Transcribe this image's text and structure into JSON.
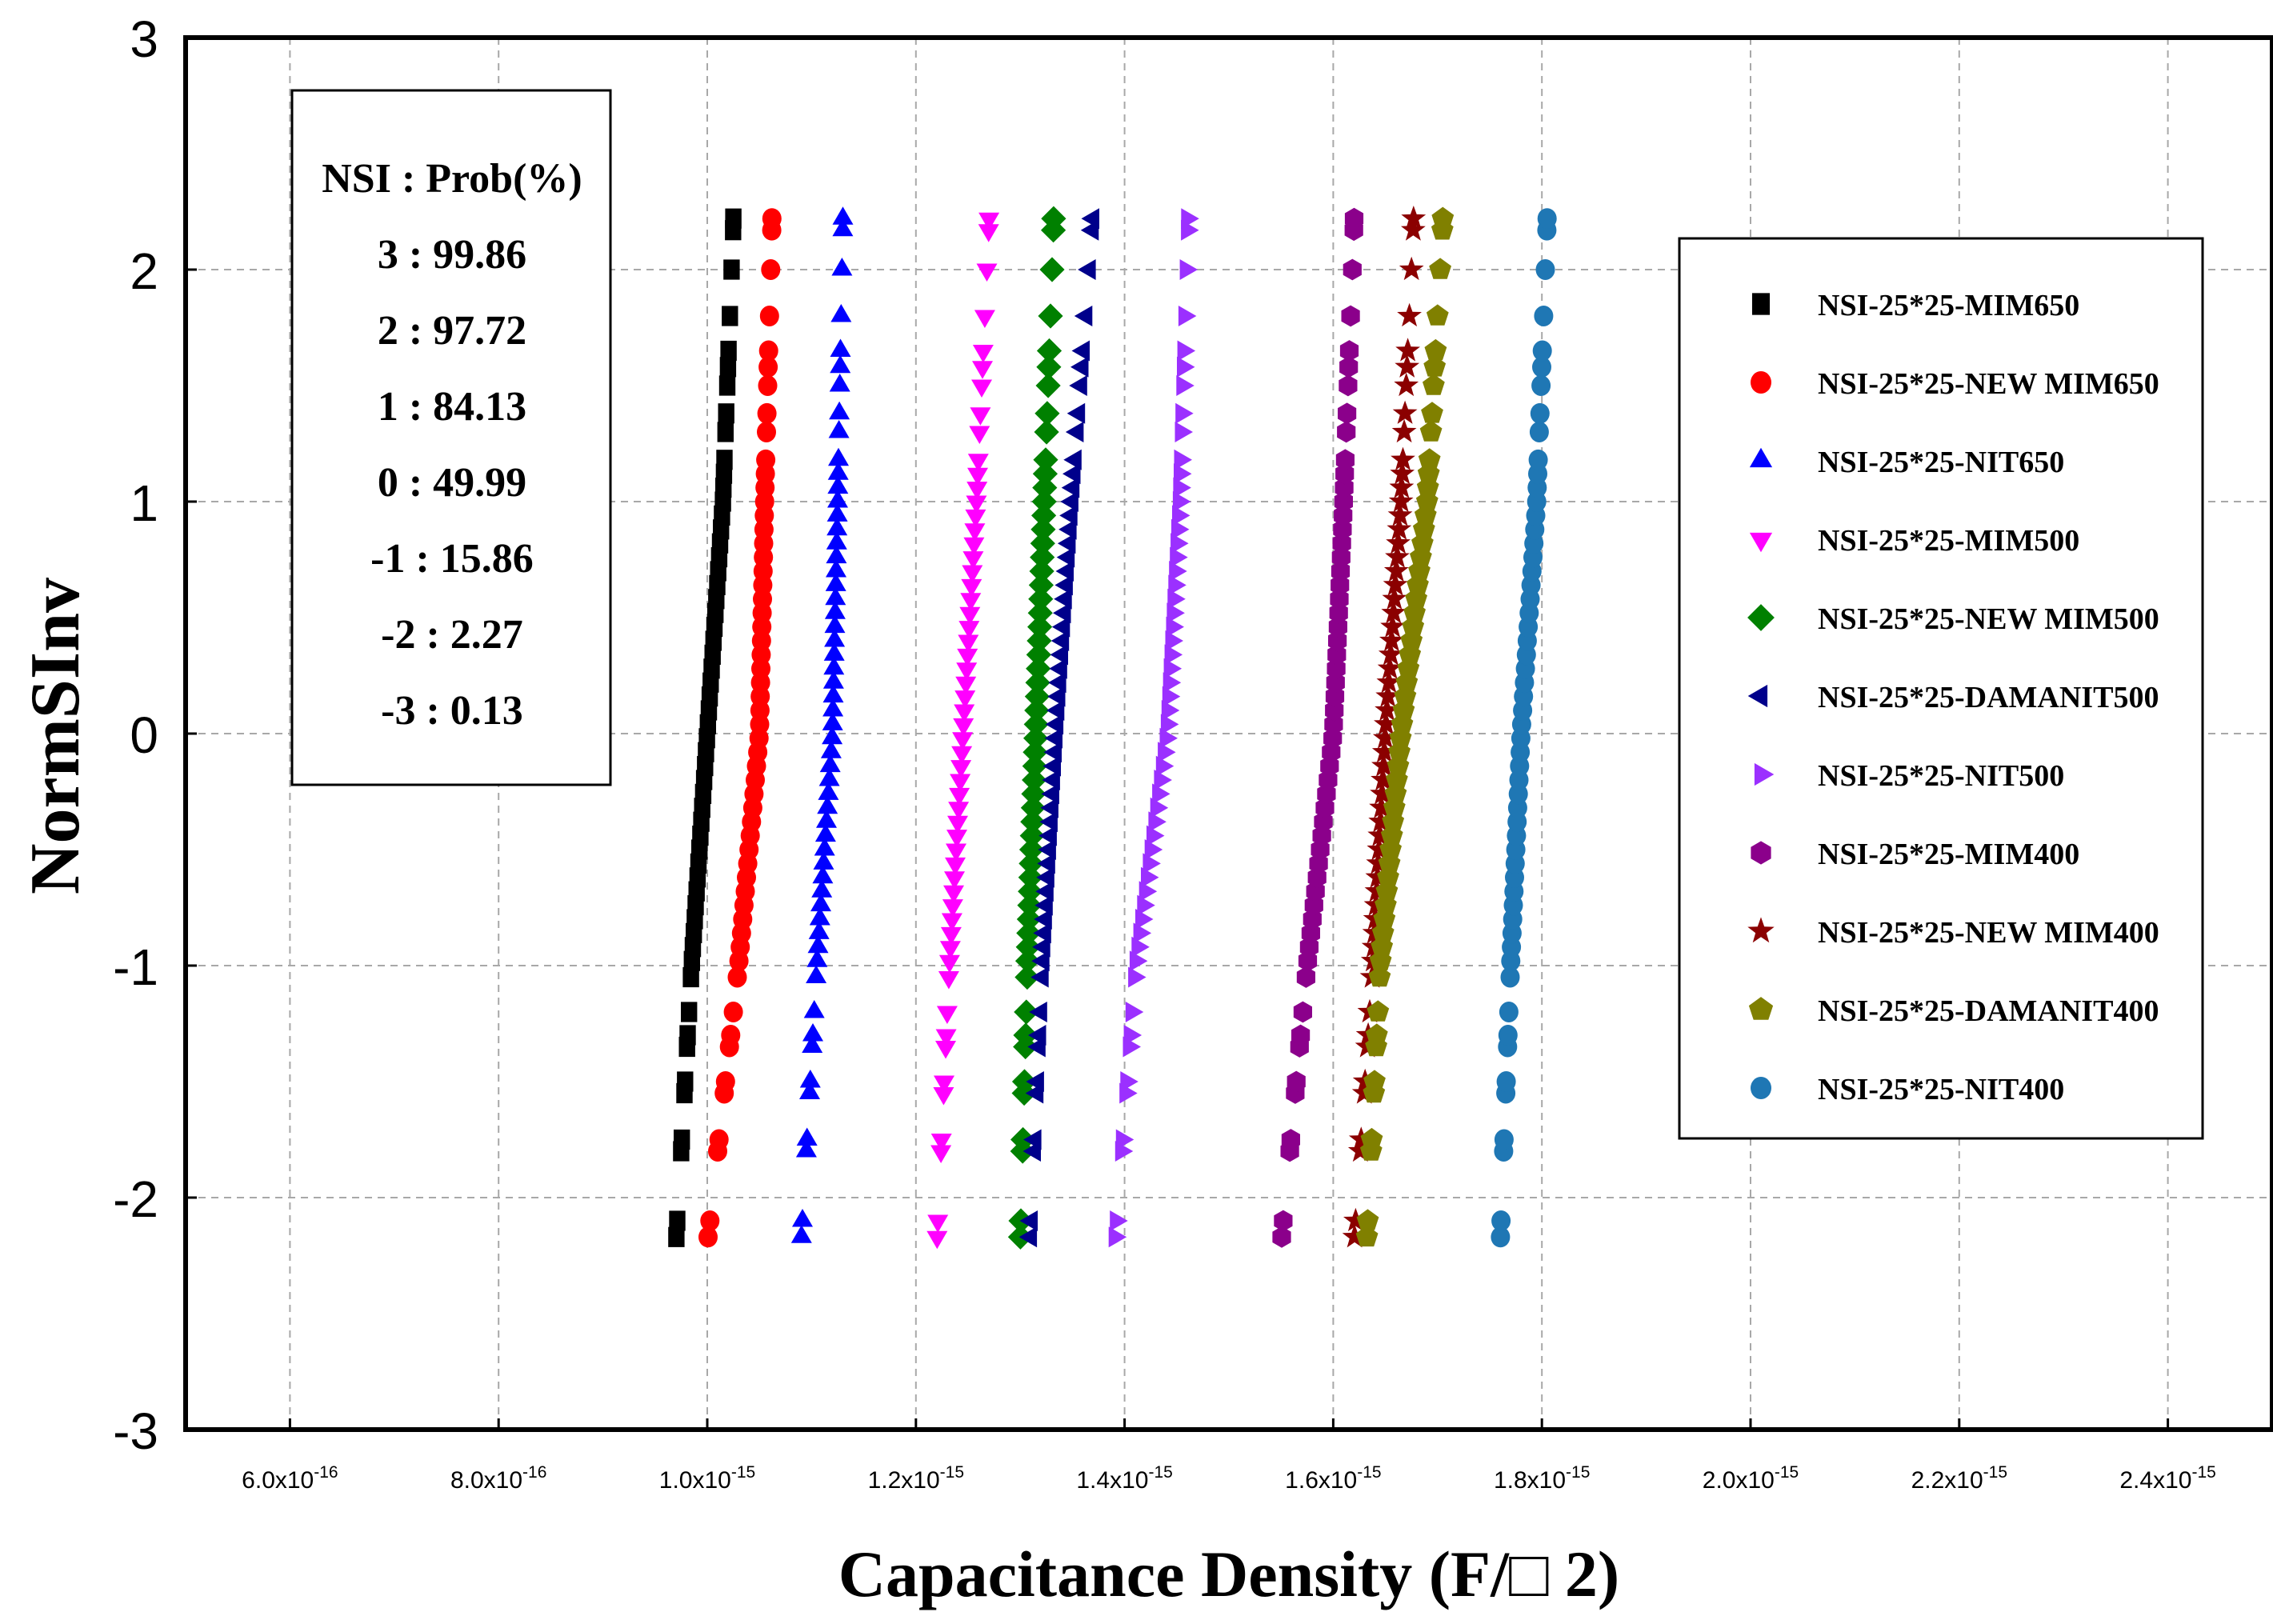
{
  "chart_data": {
    "type": "scatter",
    "title": "",
    "xlabel": "Capacitance Density (F/□ 2)",
    "ylabel": "NormSInv",
    "xlim": [
      5e-16,
      2.5e-15
    ],
    "ylim": [
      -3,
      3
    ],
    "grid": true,
    "legend_position": "right",
    "x_ticks": [
      {
        "value": 6e-16,
        "mant": "6.0x10",
        "exp": "-16"
      },
      {
        "value": 8e-16,
        "mant": "8.0x10",
        "exp": "-16"
      },
      {
        "value": 1e-15,
        "mant": "1.0x10",
        "exp": "-15"
      },
      {
        "value": 1.2e-15,
        "mant": "1.2x10",
        "exp": "-15"
      },
      {
        "value": 1.4e-15,
        "mant": "1.4x10",
        "exp": "-15"
      },
      {
        "value": 1.6e-15,
        "mant": "1.6x10",
        "exp": "-15"
      },
      {
        "value": 1.8e-15,
        "mant": "1.8x10",
        "exp": "-15"
      },
      {
        "value": 2e-15,
        "mant": "2.0x10",
        "exp": "-15"
      },
      {
        "value": 2.2e-15,
        "mant": "2.2x10",
        "exp": "-15"
      },
      {
        "value": 2.4e-15,
        "mant": "2.4x10",
        "exp": "-15"
      }
    ],
    "y_ticks": [
      {
        "value": 3,
        "label": "3"
      },
      {
        "value": 2,
        "label": "2"
      },
      {
        "value": 1,
        "label": "1"
      },
      {
        "value": 0,
        "label": "0"
      },
      {
        "value": -1,
        "label": "-1"
      },
      {
        "value": -2,
        "label": "-2"
      },
      {
        "value": -3,
        "label": "-3"
      }
    ],
    "annotation": {
      "title": "NSI : Prob(%)",
      "lines": [
        "3 : 99.86",
        "2 : 97.72",
        "1 : 84.13",
        "0 : 49.99",
        "-1 : 15.86",
        "-2 : 2.27",
        "-3 : 0.13"
      ]
    },
    "y_points": [
      -2.17,
      -2.1,
      -1.8,
      -1.75,
      -1.55,
      -1.5,
      -1.35,
      -1.3,
      -1.2,
      -1.05,
      -0.98,
      -0.92,
      -0.86,
      -0.8,
      -0.74,
      -0.68,
      -0.62,
      -0.56,
      -0.5,
      -0.44,
      -0.38,
      -0.32,
      -0.26,
      -0.2,
      -0.14,
      -0.08,
      -0.02,
      0.04,
      0.1,
      0.16,
      0.22,
      0.28,
      0.34,
      0.4,
      0.46,
      0.52,
      0.58,
      0.64,
      0.7,
      0.76,
      0.82,
      0.88,
      0.94,
      1.0,
      1.06,
      1.12,
      1.18,
      1.3,
      1.38,
      1.5,
      1.58,
      1.65,
      1.8,
      2.0,
      2.17,
      2.22
    ],
    "series": [
      {
        "name": "NSI-25*25-MIM650",
        "marker": "square",
        "color": "#000000",
        "min": 9.7e-16,
        "q1": 9.85e-16,
        "mid": 1e-15,
        "q3": 1.015e-15,
        "max": 1.025e-15
      },
      {
        "name": "NSI-25*25-NEW MIM650",
        "marker": "circle",
        "color": "#ff0000",
        "min": 1e-15,
        "q1": 1.03e-15,
        "mid": 1.05e-15,
        "q3": 1.055e-15,
        "max": 1.062e-15
      },
      {
        "name": "NSI-25*25-NIT650",
        "marker": "triangle-up",
        "color": "#0000ff",
        "min": 1.09e-15,
        "q1": 1.105e-15,
        "mid": 1.12e-15,
        "q3": 1.125e-15,
        "max": 1.13e-15
      },
      {
        "name": "NSI-25*25-MIM500",
        "marker": "triangle-down",
        "color": "#ff00ff",
        "min": 1.22e-15,
        "q1": 1.232e-15,
        "mid": 1.245e-15,
        "q3": 1.258e-15,
        "max": 1.27e-15
      },
      {
        "name": "NSI-25*25-NEW MIM500",
        "marker": "diamond",
        "color": "#008000",
        "min": 1.3e-15,
        "q1": 1.307e-15,
        "mid": 1.315e-15,
        "q3": 1.323e-15,
        "max": 1.332e-15
      },
      {
        "name": "NSI-25*25-DAMANIT500",
        "marker": "triangle-left",
        "color": "#00008b",
        "min": 1.31e-15,
        "q1": 1.322e-15,
        "mid": 1.335e-15,
        "q3": 1.35e-15,
        "max": 1.37e-15
      },
      {
        "name": "NSI-25*25-NIT500",
        "marker": "triangle-right",
        "color": "#9b30ff",
        "min": 1.39e-15,
        "q1": 1.41e-15,
        "mid": 1.44e-15,
        "q3": 1.452e-15,
        "max": 1.46e-15
      },
      {
        "name": "NSI-25*25-MIM400",
        "marker": "hexagon",
        "color": "#8b008b",
        "min": 1.55e-15,
        "q1": 1.575e-15,
        "mid": 1.6e-15,
        "q3": 1.61e-15,
        "max": 1.62e-15
      },
      {
        "name": "NSI-25*25-NEW MIM400",
        "marker": "star",
        "color": "#8b0000",
        "min": 1.62e-15,
        "q1": 1.638e-15,
        "mid": 1.65e-15,
        "q3": 1.665e-15,
        "max": 1.677e-15
      },
      {
        "name": "NSI-25*25-DAMANIT400",
        "marker": "pentagon",
        "color": "#808000",
        "min": 1.632e-15,
        "q1": 1.645e-15,
        "mid": 1.665e-15,
        "q3": 1.69e-15,
        "max": 1.705e-15
      },
      {
        "name": "NSI-25*25-NIT400",
        "marker": "circle",
        "color": "#1f77b4",
        "min": 1.76e-15,
        "q1": 1.77e-15,
        "mid": 1.78e-15,
        "q3": 1.795e-15,
        "max": 1.805e-15
      }
    ]
  }
}
